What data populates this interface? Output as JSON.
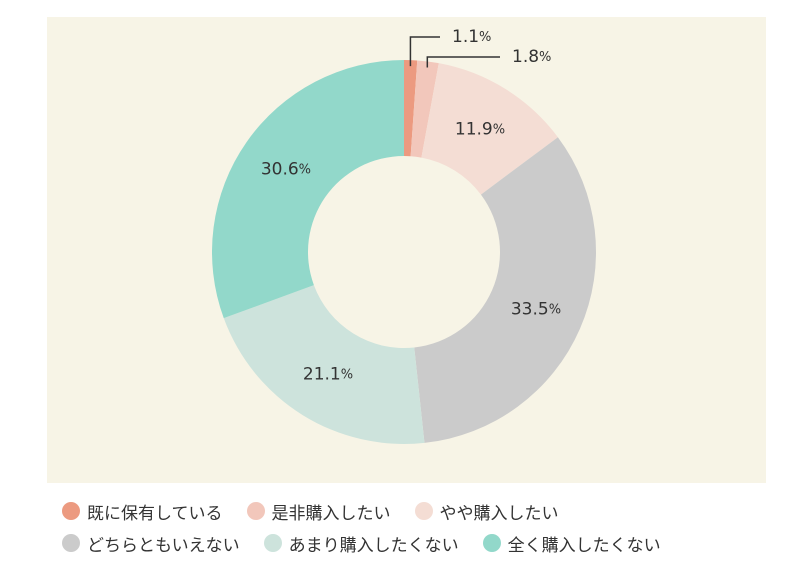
{
  "chart_data": {
    "type": "pie",
    "donut": true,
    "legend_position": "bottom",
    "categories": [
      "既に保有している",
      "是非購入したい",
      "やや購入したい",
      "どちらともいえない",
      "あまり購入したくない",
      "全く購入したくない"
    ],
    "values": [
      1.1,
      1.8,
      11.9,
      33.5,
      21.1,
      30.6
    ],
    "labels": [
      "1.1",
      "1.8",
      "11.9",
      "33.5",
      "21.1",
      "30.6"
    ],
    "unit": "%",
    "colors": [
      "#ec9a80",
      "#f2c7bb",
      "#f4ddd4",
      "#cbcbcb",
      "#cde3dc",
      "#92d8ca"
    ]
  },
  "legend": {
    "rows": [
      [
        0,
        1,
        2
      ],
      [
        3,
        4,
        5
      ]
    ]
  }
}
